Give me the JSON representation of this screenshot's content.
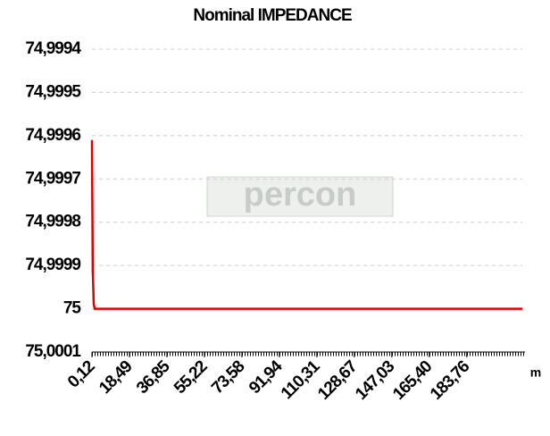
{
  "chart_data": {
    "type": "line",
    "title": "Nominal IMPEDANCE",
    "watermark": "percon",
    "xlabel": "m",
    "x": [
      0.12,
      0.5,
      1,
      1.5,
      2,
      211
    ],
    "series": [
      {
        "name": "IMPEDANCE",
        "color": "#e00000",
        "values": [
          74.99961,
          74.99991,
          74.99999,
          75,
          75,
          75
        ]
      }
    ],
    "xlim": [
      0.12,
      211
    ],
    "xticks": [
      {
        "value": 0.12,
        "label": "0,12"
      },
      {
        "value": 18.49,
        "label": "18,49"
      },
      {
        "value": 36.85,
        "label": "36,85"
      },
      {
        "value": 55.22,
        "label": "55,22"
      },
      {
        "value": 73.58,
        "label": "73,58"
      },
      {
        "value": 91.94,
        "label": "91,94"
      },
      {
        "value": 110.31,
        "label": "110,31"
      },
      {
        "value": 128.67,
        "label": "128,67"
      },
      {
        "value": 147.03,
        "label": "147,03"
      },
      {
        "value": 165.4,
        "label": "165,40"
      },
      {
        "value": 183.76,
        "label": "183,76"
      }
    ],
    "ylim": [
      75.0001,
      74.9994
    ],
    "yticks": [
      {
        "value": 74.9994,
        "label": "74,9994"
      },
      {
        "value": 74.9995,
        "label": "74,9995"
      },
      {
        "value": 74.9996,
        "label": "74,9996"
      },
      {
        "value": 74.9997,
        "label": "74,9997"
      },
      {
        "value": 74.9998,
        "label": "74,9998"
      },
      {
        "value": 74.9999,
        "label": "74,9999"
      },
      {
        "value": 75,
        "label": "75"
      },
      {
        "value": 75.0001,
        "label": "75,0001"
      }
    ],
    "grid": true
  }
}
